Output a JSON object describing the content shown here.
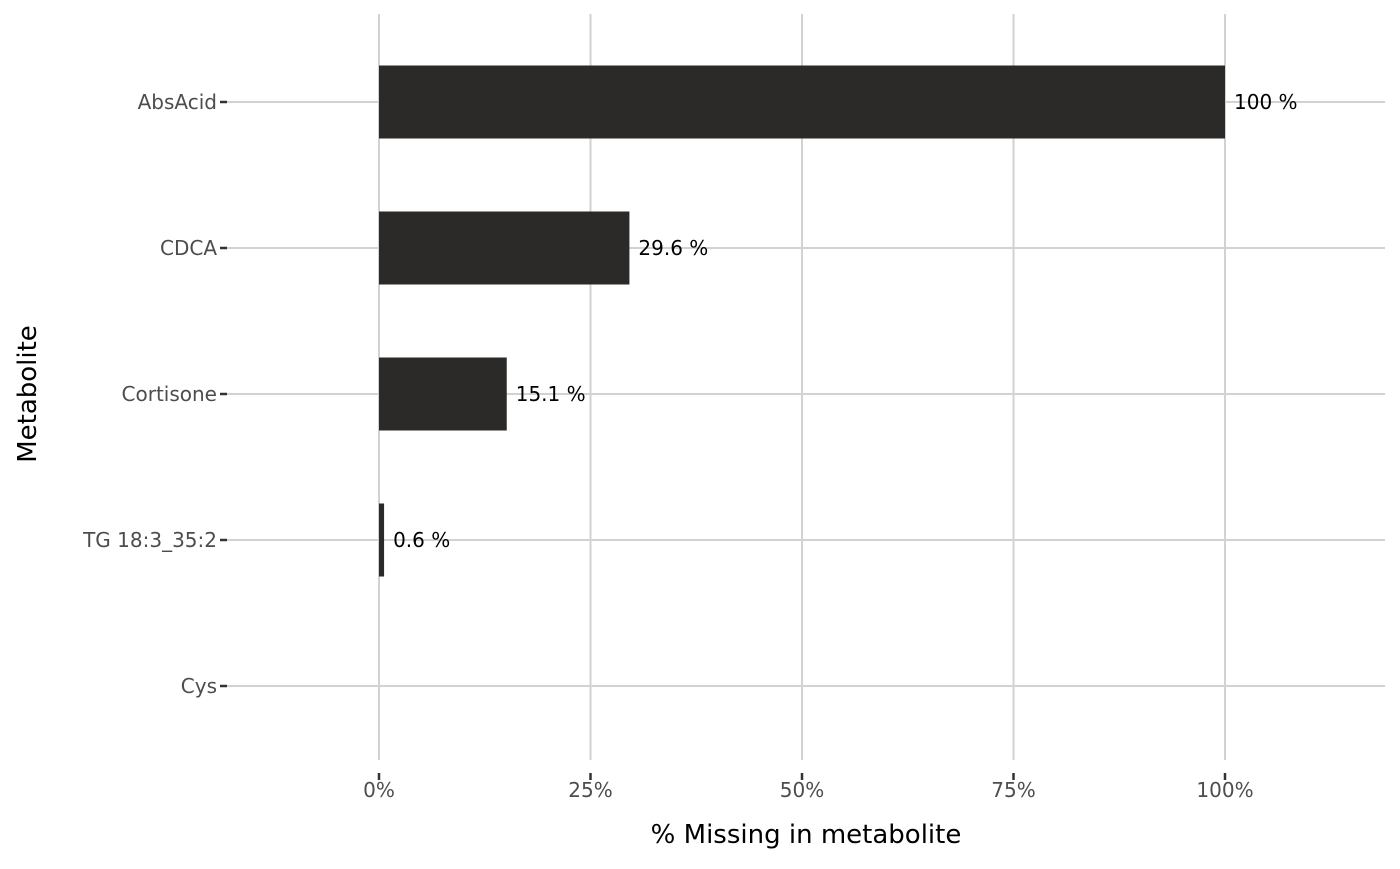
{
  "chart_data": {
    "type": "bar",
    "orientation": "horizontal",
    "categories": [
      "AbsAcid",
      "CDCA",
      "Cortisone",
      "TG 18:3_35:2",
      "Cys"
    ],
    "values": [
      100,
      29.6,
      15.1,
      0.6,
      0
    ],
    "data_labels": [
      "100 %",
      "29.6 %",
      "15.1 %",
      "0.6 %",
      ""
    ],
    "xlabel": "% Missing in metabolite",
    "ylabel": "Metabolite",
    "xlim": [
      0,
      100
    ],
    "x_ticks": [
      0,
      25,
      50,
      75,
      100
    ],
    "x_tick_labels": [
      "0%",
      "25%",
      "50%",
      "75%",
      "100%"
    ],
    "grid": true,
    "bar_color": "#2b2a28",
    "grid_color": "#d2d2d2"
  }
}
